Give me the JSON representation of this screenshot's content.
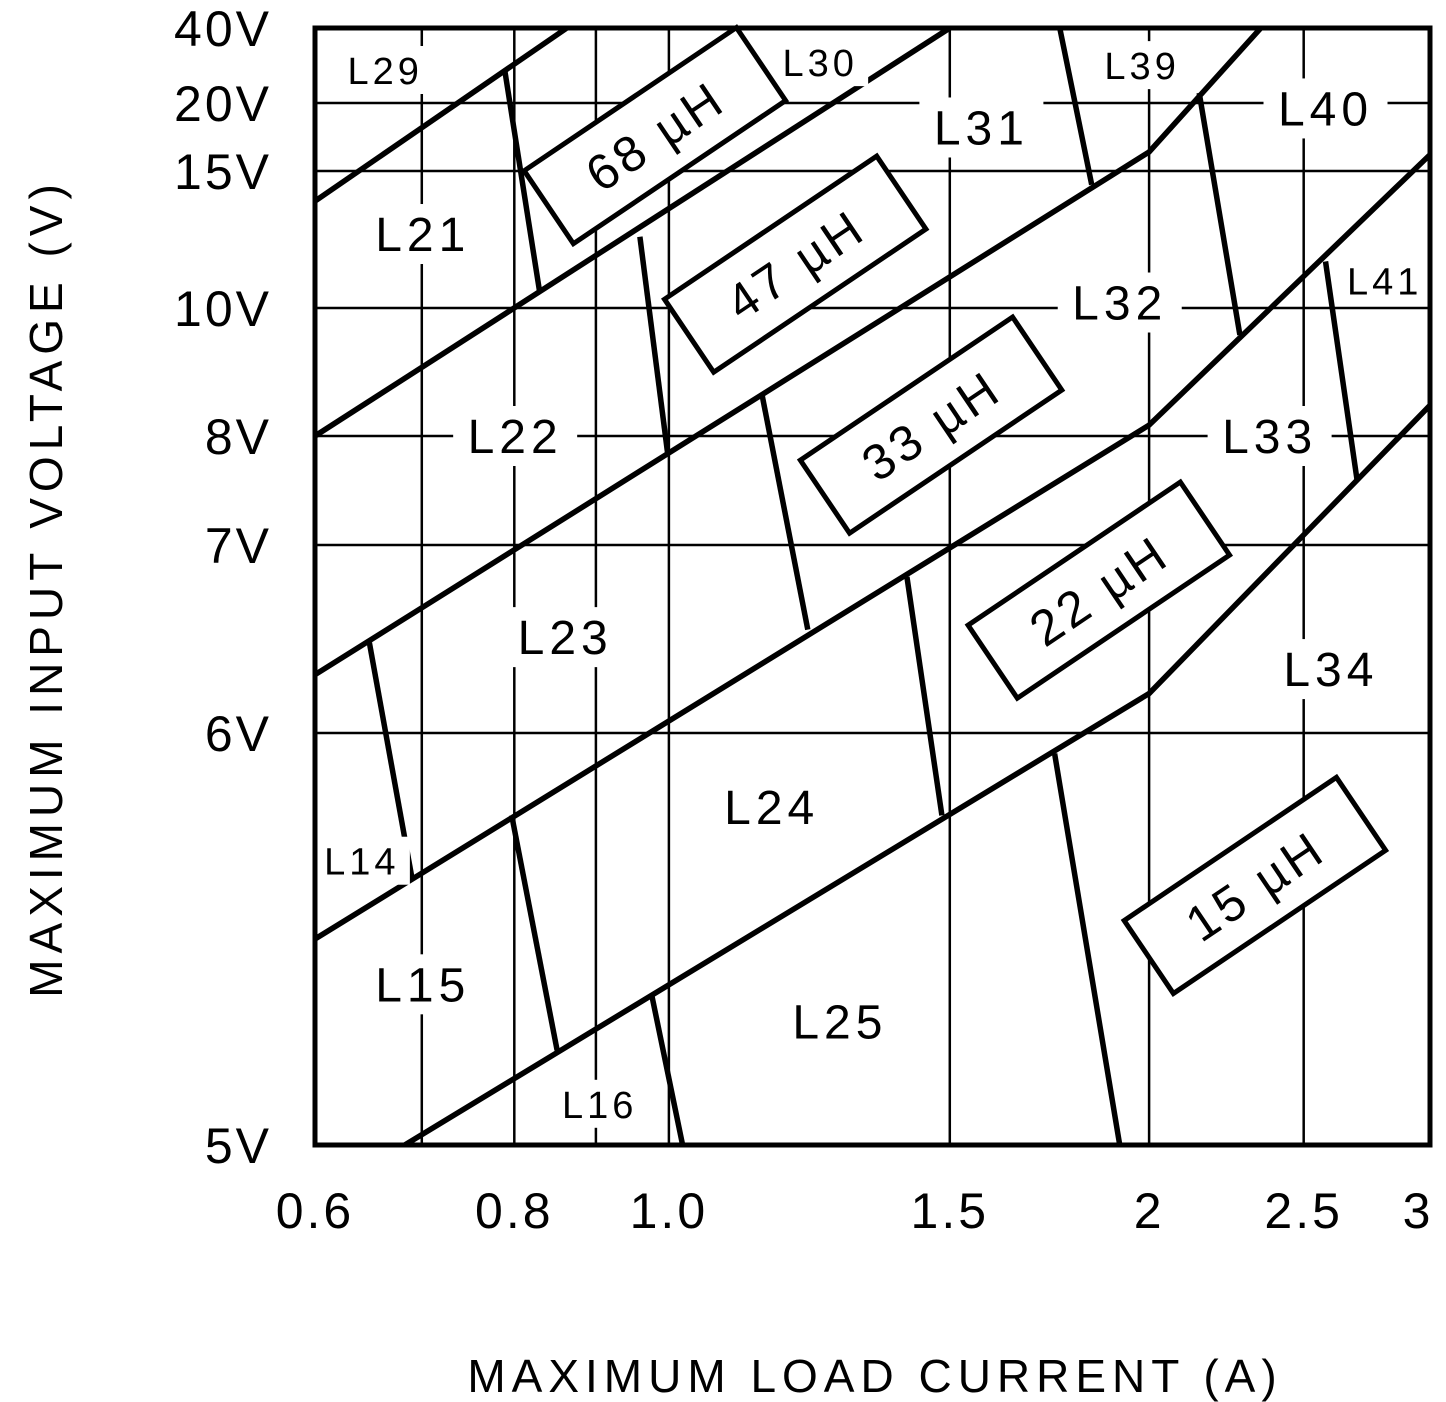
{
  "chart_data": {
    "type": "line",
    "title": "",
    "xlabel": "MAXIMUM LOAD CURRENT (A)",
    "ylabel": "MAXIMUM INPUT VOLTAGE (V)",
    "xscale": "log",
    "xlim": [
      0.6,
      3
    ],
    "ylim": [
      5,
      40
    ],
    "grid": true,
    "x_ticks": [
      {
        "value": 0.6,
        "label": "0.6"
      },
      {
        "value": 0.8,
        "label": "0.8"
      },
      {
        "value": 1.0,
        "label": "1.0"
      },
      {
        "value": 1.5,
        "label": "1.5"
      },
      {
        "value": 2,
        "label": "2"
      },
      {
        "value": 2.5,
        "label": "2.5"
      },
      {
        "value": 3,
        "label": "3"
      }
    ],
    "x_minor_grid": [
      0.7,
      0.9
    ],
    "y_ticks": [
      {
        "value": 40,
        "label": "40V"
      },
      {
        "value": 20,
        "label": "20V"
      },
      {
        "value": 15,
        "label": "15V"
      },
      {
        "value": 10,
        "label": "10V"
      },
      {
        "value": 8,
        "label": "8V"
      },
      {
        "value": 7,
        "label": "7V"
      },
      {
        "value": 6,
        "label": "6V"
      },
      {
        "value": 5,
        "label": "5V"
      }
    ],
    "inductance_boundaries": [
      {
        "points": [
          [
            0.6,
            13.9
          ],
          [
            0.863,
            40
          ]
        ]
      },
      {
        "points": [
          [
            0.6,
            8.0
          ],
          [
            1.5,
            40
          ]
        ]
      },
      {
        "points": [
          [
            0.6,
            6.31
          ],
          [
            2.0,
            16.4
          ],
          [
            2.35,
            40
          ]
        ]
      },
      {
        "points": [
          [
            0.6,
            5.5
          ],
          [
            2.0,
            8.17
          ],
          [
            3.0,
            16.2
          ]
        ]
      },
      {
        "points": [
          [
            0.683,
            5.0
          ],
          [
            2.0,
            6.21
          ],
          [
            3.0,
            8.48
          ]
        ]
      }
    ],
    "inductor_boundaries": [
      {
        "points": [
          [
            0.789,
            28.8
          ],
          [
            0.83,
            10.55
          ]
        ]
      },
      {
        "points": [
          [
            0.959,
            12.6
          ],
          [
            0.998,
            7.85
          ]
        ]
      },
      {
        "points": [
          [
            1.144,
            8.64
          ],
          [
            1.222,
            6.55
          ]
        ]
      },
      {
        "points": [
          [
            1.41,
            6.83
          ],
          [
            1.483,
            5.8
          ]
        ]
      },
      {
        "points": [
          [
            1.745,
            5.95
          ],
          [
            1.917,
            5.0
          ]
        ]
      },
      {
        "points": [
          [
            1.758,
            40
          ],
          [
            1.841,
            14.5
          ]
        ]
      },
      {
        "points": [
          [
            2.15,
            22.7
          ],
          [
            2.28,
            9.58
          ]
        ]
      },
      {
        "points": [
          [
            2.58,
            11.7
          ],
          [
            2.7,
            7.6
          ]
        ]
      },
      {
        "points": [
          [
            0.649,
            6.48
          ],
          [
            0.69,
            5.65
          ]
        ]
      },
      {
        "points": [
          [
            0.797,
            5.8
          ],
          [
            0.851,
            5.23
          ]
        ]
      },
      {
        "points": [
          [
            0.976,
            5.36
          ],
          [
            1.02,
            5.0
          ]
        ]
      }
    ],
    "regions": [
      {
        "label": "L29",
        "x": 0.664,
        "y": 28.8,
        "small": true
      },
      {
        "label": "L30",
        "x": 1.244,
        "y": 30.9,
        "small": true
      },
      {
        "label": "L39",
        "x": 1.98,
        "y": 30.1,
        "small": true
      },
      {
        "label": "L40",
        "x": 2.58,
        "y": 19.6
      },
      {
        "label": "L31",
        "x": 1.57,
        "y": 18.2
      },
      {
        "label": "L21",
        "x": 0.701,
        "y": 12.7
      },
      {
        "label": "L32",
        "x": 1.917,
        "y": 10.2
      },
      {
        "label": "L41",
        "x": 2.81,
        "y": 11.0,
        "small": true
      },
      {
        "label": "L22",
        "x": 0.801,
        "y": 8.0
      },
      {
        "label": "L33",
        "x": 2.38,
        "y": 8.0
      },
      {
        "label": "L23",
        "x": 0.861,
        "y": 6.51
      },
      {
        "label": "L34",
        "x": 2.6,
        "y": 6.34
      },
      {
        "label": "L14",
        "x": 0.642,
        "y": 5.69,
        "small": true
      },
      {
        "label": "L24",
        "x": 1.16,
        "y": 5.82
      },
      {
        "label": "L15",
        "x": 0.701,
        "y": 5.39
      },
      {
        "label": "L25",
        "x": 1.28,
        "y": 5.3
      },
      {
        "label": "L16",
        "x": 0.905,
        "y": 5.1,
        "small": true
      }
    ],
    "inductance_labels": [
      {
        "label": "68 µH",
        "x": 0.98,
        "y": 17.6
      },
      {
        "label": "47 µH",
        "x": 1.2,
        "y": 11.6
      },
      {
        "label": "33 µH",
        "x": 1.46,
        "y": 8.17
      },
      {
        "label": "22 µH",
        "x": 1.86,
        "y": 6.76
      },
      {
        "label": "15 µH",
        "x": 2.33,
        "y": 5.63
      }
    ],
    "line_color": "#000000",
    "background": "#ffffff"
  }
}
